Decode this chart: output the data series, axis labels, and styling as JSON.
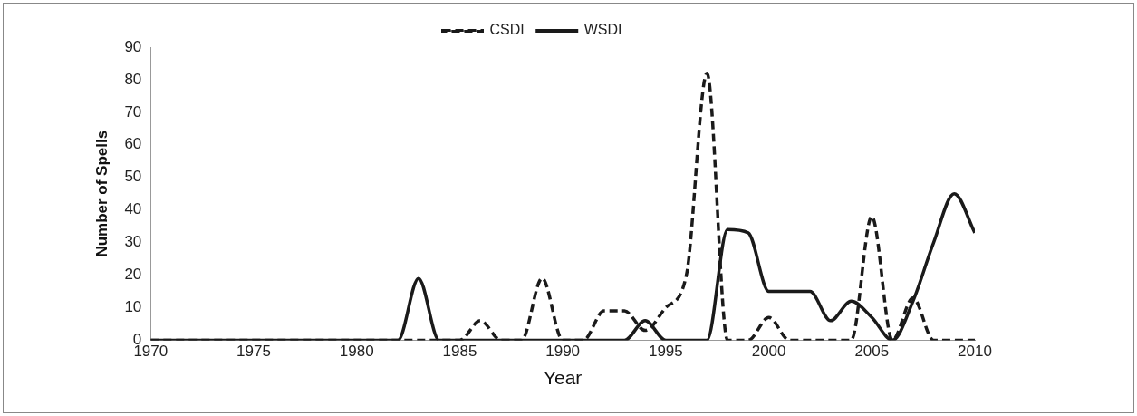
{
  "chart_data": {
    "type": "line",
    "xlabel": "Year",
    "ylabel": "Number of Spells",
    "x": [
      1970,
      1971,
      1972,
      1973,
      1974,
      1975,
      1976,
      1977,
      1978,
      1979,
      1980,
      1981,
      1982,
      1983,
      1984,
      1985,
      1986,
      1987,
      1988,
      1989,
      1990,
      1991,
      1992,
      1993,
      1994,
      1995,
      1996,
      1997,
      1998,
      1999,
      2000,
      2001,
      2002,
      2003,
      2004,
      2005,
      2006,
      2007,
      2008,
      2009,
      2010
    ],
    "series": [
      {
        "name": "CSDI",
        "color": "#1a1a1a",
        "line_style": "dashed",
        "values": [
          0,
          0,
          0,
          0,
          0,
          0,
          0,
          0,
          0,
          0,
          0,
          0,
          0,
          0,
          0,
          0,
          6,
          0,
          0,
          19,
          0,
          0,
          9,
          9,
          3,
          10,
          20,
          82,
          0,
          0,
          7,
          0,
          0,
          0,
          0,
          38,
          0,
          13,
          0,
          0,
          0
        ]
      },
      {
        "name": "WSDI",
        "color": "#1a1a1a",
        "line_style": "solid",
        "values": [
          0,
          0,
          0,
          0,
          0,
          0,
          0,
          0,
          0,
          0,
          0,
          0,
          0,
          19,
          0,
          0,
          0,
          0,
          0,
          0,
          0,
          0,
          0,
          0,
          6,
          0,
          0,
          0,
          34,
          33,
          15,
          15,
          15,
          6,
          12,
          7,
          0,
          12,
          30,
          45,
          33
        ]
      }
    ],
    "xlim": [
      1970,
      2010
    ],
    "xticks": [
      1970,
      1975,
      1980,
      1985,
      1990,
      1995,
      2000,
      2005,
      2010
    ],
    "ylim": [
      0,
      90
    ],
    "yticks": [
      0,
      10,
      20,
      30,
      40,
      50,
      60,
      70,
      80,
      90
    ],
    "grid": false,
    "legend": "top",
    "marker": "none"
  }
}
